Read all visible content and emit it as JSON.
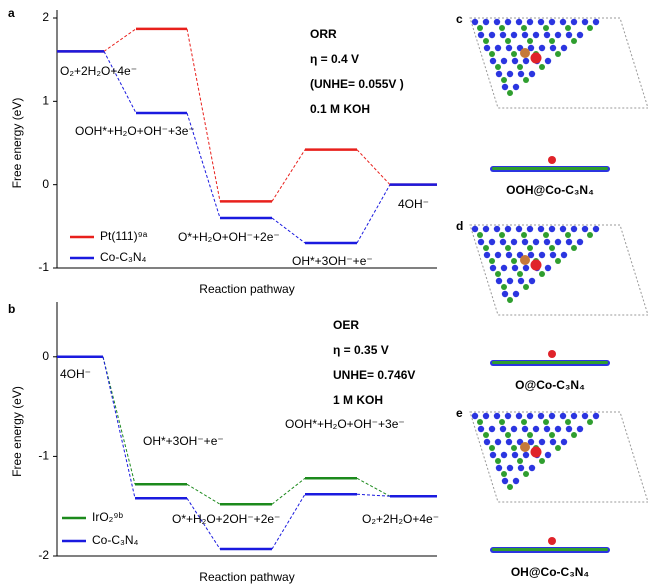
{
  "chart_data": [
    {
      "type": "step",
      "panel": "a",
      "ylabel": "Free energy (eV)",
      "xlabel": "Reaction pathway",
      "ylim": [
        -1,
        2
      ],
      "yticks": [
        -1,
        0,
        1,
        2
      ],
      "info": [
        "ORR",
        "η = 0.4 V",
        "(UNHE= 0.055V )",
        "0.1 M KOH"
      ],
      "annotations": [
        "O₂+2H₂O+4e⁻",
        "OOH*+H₂O+OH⁻+3e⁻",
        "O*+H₂O+OH⁻+2e⁻",
        "OH*+3OH⁻+e⁻",
        "4OH⁻"
      ],
      "series": [
        {
          "name": "Pt(111)⁹ᵃ",
          "color": "#e8201c",
          "values": [
            1.6,
            1.87,
            -0.2,
            0.42,
            0
          ]
        },
        {
          "name": "Co-C₃N₄",
          "color": "#1a1adf",
          "values": [
            1.6,
            0.86,
            -0.4,
            -0.7,
            0
          ]
        }
      ]
    },
    {
      "type": "step",
      "panel": "b",
      "ylabel": "Free energy (eV)",
      "xlabel": "Reaction pathway",
      "ylim": [
        -2,
        0.5
      ],
      "yticks": [
        -2,
        -1,
        0
      ],
      "info": [
        "OER",
        "η = 0.35 V",
        "UNHE= 0.746V",
        "1 M KOH"
      ],
      "annotations": [
        "4OH⁻",
        "OH*+3OH⁻+e⁻",
        "O*+H₂O+2OH⁻+2e⁻",
        "OOH*+H₂O+OH⁻+3e⁻",
        "O₂+2H₂O+4e⁻"
      ],
      "series": [
        {
          "name": "IrO₂⁹ᵇ",
          "color": "#1c8a1c",
          "values": [
            0,
            -1.28,
            -1.48,
            -1.22,
            -1.4
          ]
        },
        {
          "name": "Co-C₃N₄",
          "color": "#1a1adf",
          "values": [
            0,
            -1.42,
            -1.93,
            -1.38,
            -1.4
          ]
        }
      ]
    }
  ],
  "structures": [
    {
      "panel": "c",
      "caption": "OOH@Co-C₃N₄"
    },
    {
      "panel": "d",
      "caption": "O@Co-C₃N₄"
    },
    {
      "panel": "e",
      "caption": "OH@Co-C₃N₄"
    }
  ]
}
